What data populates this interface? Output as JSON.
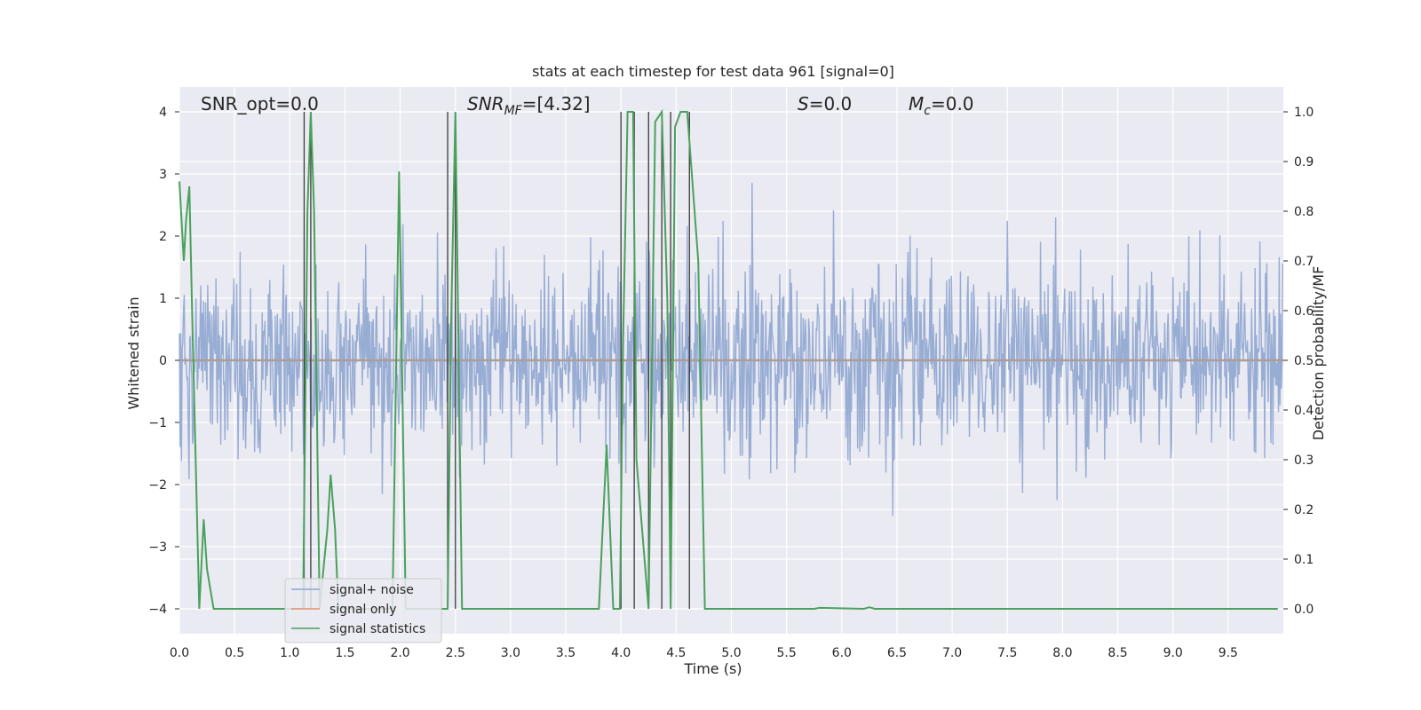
{
  "chart_data": {
    "type": "line",
    "title": "stats at each timestep for test data 961 [signal=0]",
    "xlabel": "Time (s)",
    "ylabel": "Whitened strain",
    "ylabel_right": "Detection probability/MF",
    "xlim": [
      0,
      10
    ],
    "ylim": [
      -4.4,
      4.4
    ],
    "ylim_right": [
      -0.05,
      1.05
    ],
    "grid": true,
    "legend_position": "lower-left",
    "x_ticks": [
      "0.0",
      "0.5",
      "1.0",
      "1.5",
      "2.0",
      "2.5",
      "3.0",
      "3.5",
      "4.0",
      "4.5",
      "5.0",
      "5.5",
      "6.0",
      "6.5",
      "7.0",
      "7.5",
      "8.0",
      "8.5",
      "9.0",
      "9.5"
    ],
    "y_ticks": [
      "−4",
      "−3",
      "−2",
      "−1",
      "0",
      "1",
      "2",
      "3",
      "4"
    ],
    "y_ticks_right": [
      "0.0",
      "0.1",
      "0.2",
      "0.3",
      "0.4",
      "0.5",
      "0.6",
      "0.7",
      "0.8",
      "0.9",
      "1.0"
    ],
    "annotations": {
      "snr_opt": "SNR_opt=0.0",
      "snr_mf_sym": "SNR",
      "snr_mf_sub": "MF",
      "snr_mf_val": "=[4.32]",
      "s_sym": "S",
      "s_val": "=0.0",
      "mc_sym": "M",
      "mc_sub": "c",
      "mc_val": "=0.0"
    },
    "vertical_lines_x": [
      1.13,
      1.19,
      2.43,
      2.5,
      4.0,
      4.12,
      4.25,
      4.37,
      4.45,
      4.62
    ],
    "series": [
      {
        "name": "signal+ noise",
        "color": "#8fa6d0",
        "axis": "left",
        "description": "white noise approx std 0.75, dense (~1000 samples)"
      },
      {
        "name": "signal only",
        "color": "#e88d6b",
        "axis": "left",
        "values_constant": 0.0
      },
      {
        "name": "signal statistics",
        "color": "#4aa15b",
        "axis": "right",
        "x": [
          0.0,
          0.04,
          0.06,
          0.09,
          0.12,
          0.18,
          0.22,
          0.25,
          0.31,
          1.05,
          1.12,
          1.16,
          1.19,
          1.22,
          1.27,
          1.34,
          1.37,
          1.41,
          1.44,
          1.93,
          1.99,
          2.05,
          2.43,
          2.46,
          2.5,
          2.56,
          3.8,
          3.87,
          3.93,
          3.99,
          4.02,
          4.06,
          4.11,
          4.14,
          4.25,
          4.31,
          4.37,
          4.42,
          4.45,
          4.49,
          4.54,
          4.6,
          4.7,
          4.76,
          5.75,
          5.8,
          6.2,
          6.25,
          6.3,
          9.95
        ],
        "values": [
          0.86,
          0.7,
          0.78,
          0.85,
          0.55,
          0.0,
          0.18,
          0.08,
          0.0,
          0.0,
          0.0,
          0.8,
          1.0,
          0.8,
          0.0,
          0.16,
          0.27,
          0.16,
          0.0,
          0.0,
          0.88,
          0.0,
          0.0,
          0.56,
          1.0,
          0.0,
          0.0,
          0.33,
          0.0,
          0.0,
          0.55,
          1.0,
          1.0,
          0.3,
          0.0,
          0.98,
          1.0,
          0.62,
          0.0,
          0.97,
          1.0,
          1.0,
          0.7,
          0.0,
          0.0,
          0.002,
          0.0,
          0.003,
          0.0,
          0.0
        ]
      }
    ]
  }
}
